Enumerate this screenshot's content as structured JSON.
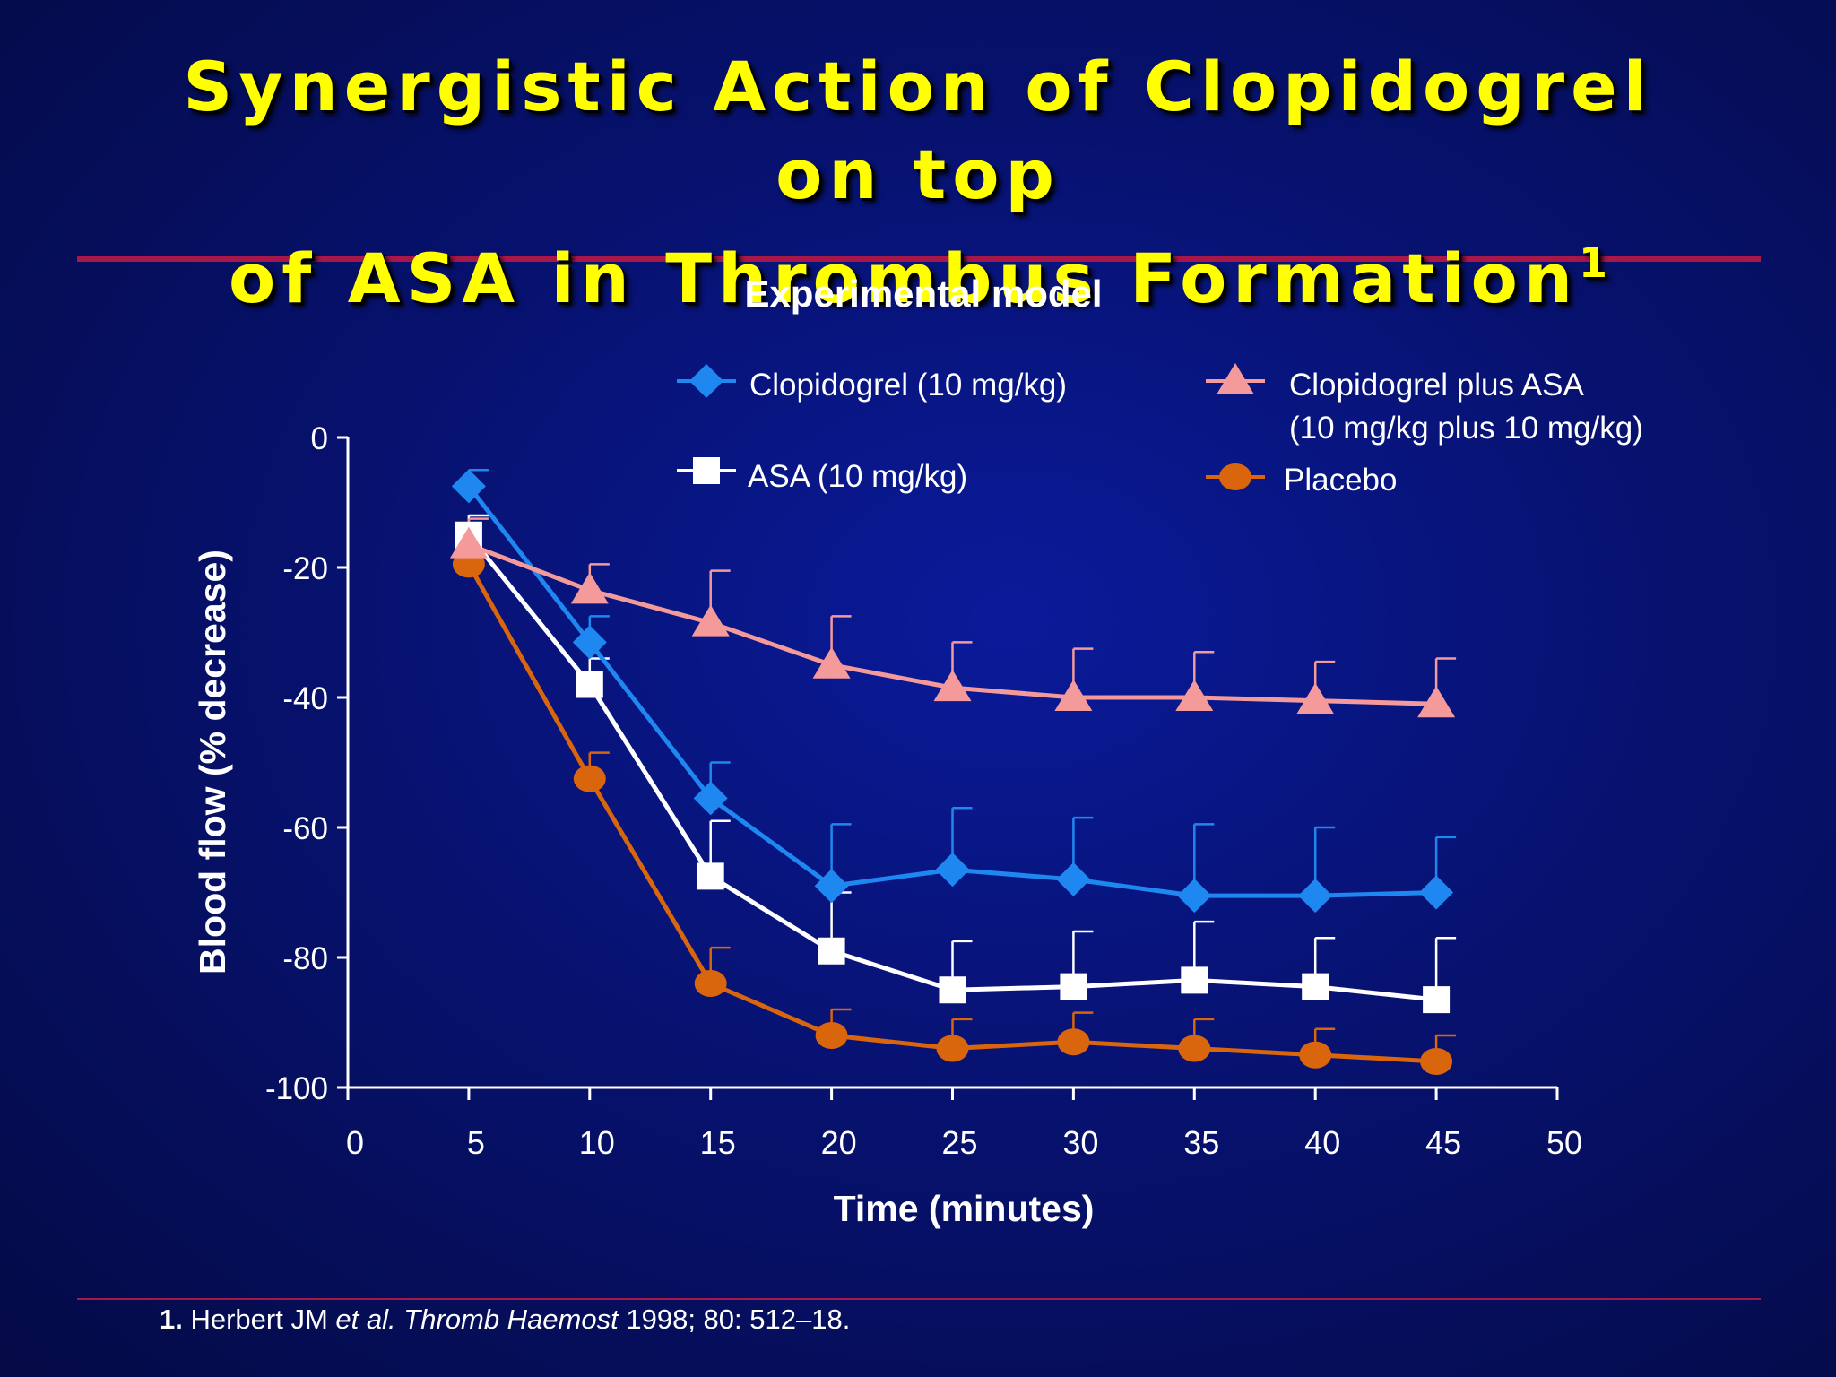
{
  "slide": {
    "title_lines": [
      "Synergistic Action of Clopidogrel",
      "on top",
      "of ASA in Thrombus Formation"
    ],
    "title_superscript": "1",
    "citation": {
      "number": "1.",
      "authors": "Herbert JM",
      "etal": "et al.",
      "journal": "Thromb Haemost",
      "details": "1998; 80: 512–18."
    },
    "colors": {
      "title": "#ffff00",
      "rule": "#a8174a",
      "background": "#071270"
    }
  },
  "chart_data": {
    "type": "line",
    "title": "Experimental model",
    "xlabel": "Time (minutes)",
    "ylabel": "Blood flow (% decrease)",
    "xlim": [
      0,
      50
    ],
    "ylim": [
      -100,
      0
    ],
    "xticks": [
      0,
      5,
      10,
      15,
      20,
      25,
      30,
      35,
      40,
      45,
      50
    ],
    "yticks": [
      0,
      -20,
      -40,
      -60,
      -80,
      -100
    ],
    "x": [
      5,
      10,
      15,
      20,
      25,
      30,
      35,
      40,
      45
    ],
    "grid": false,
    "legend_position": "top",
    "series": [
      {
        "name": "Clopidogrel (10 mg/kg)",
        "marker": "diamond",
        "color": "#1e88f0",
        "values": [
          -7.5,
          -31.5,
          -55.5,
          -69,
          -66.5,
          -68,
          -70.5,
          -70.5,
          -70
        ],
        "error_top": [
          -5,
          -27.5,
          -50,
          -59.5,
          -57,
          -58.5,
          -59.5,
          -60,
          -61.5
        ]
      },
      {
        "name": "Clopidogrel plus ASA\n(10 mg/kg plus 10 mg/kg)",
        "marker": "triangle",
        "color": "#f49a9a",
        "values": [
          -16.5,
          -23.5,
          -28.5,
          -35,
          -38.5,
          -40,
          -40,
          -40.5,
          -41
        ],
        "error_top": [
          -12.5,
          -19.5,
          -20.5,
          -27.5,
          -31.5,
          -32.5,
          -33,
          -34.5,
          -34
        ]
      },
      {
        "name": "ASA (10 mg/kg)",
        "marker": "square",
        "color": "#ffffff",
        "values": [
          -15,
          -38,
          -67.5,
          -79,
          -85,
          -84.5,
          -83.5,
          -84.5,
          -86.5
        ],
        "error_top": [
          -12,
          -34,
          -59,
          -70,
          -77.5,
          -76,
          -74.5,
          -77,
          -77
        ]
      },
      {
        "name": "Placebo",
        "marker": "circle",
        "color": "#d9650c",
        "values": [
          -19.5,
          -52.5,
          -84,
          -92,
          -94,
          -93,
          -94,
          -95,
          -96
        ],
        "error_top": [
          -17.5,
          -48.5,
          -78.5,
          -88,
          -89.5,
          -88.5,
          -89.5,
          -91,
          -92
        ]
      }
    ]
  }
}
